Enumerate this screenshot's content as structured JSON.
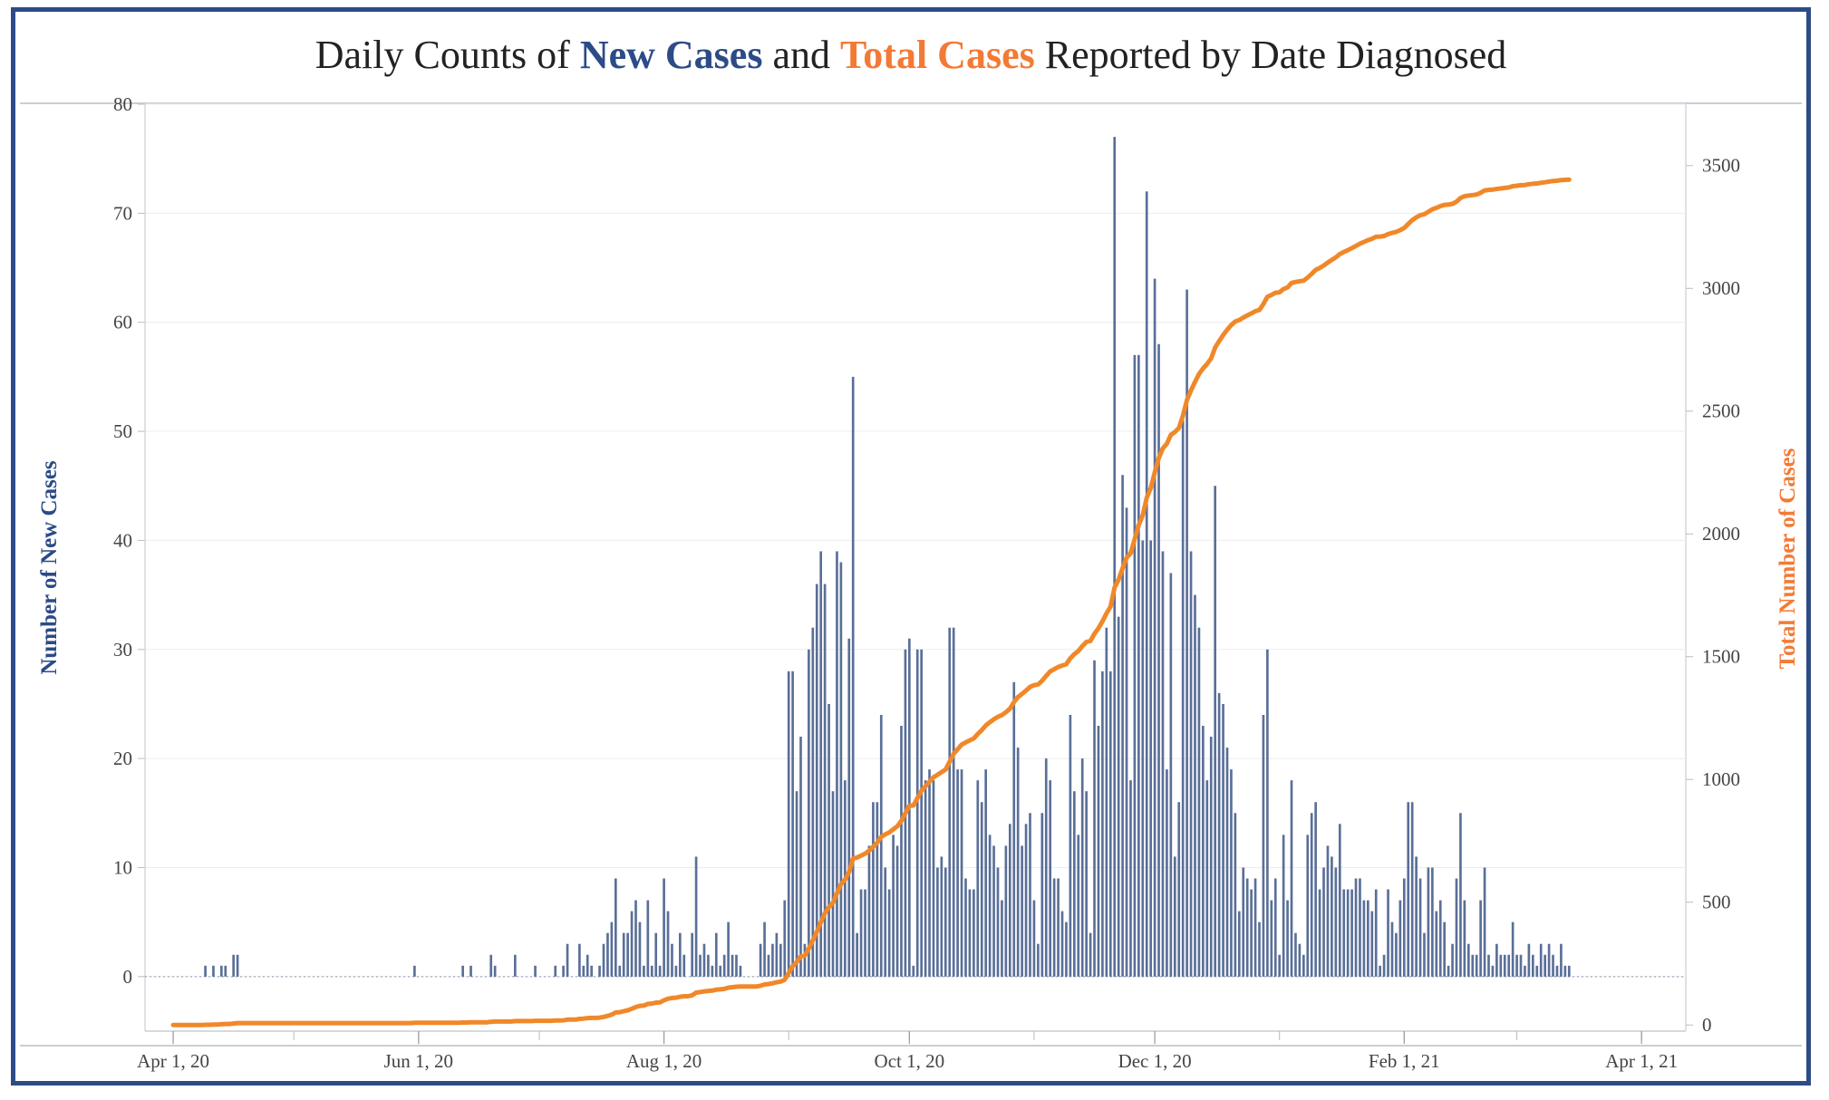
{
  "title": {
    "prefix": "Daily Counts of ",
    "new_cases": "New Cases",
    "mid": " and ",
    "total_cases": "Total Cases",
    "suffix": " Reported by Date Diagnosed"
  },
  "colors": {
    "bars": "#5a6f98",
    "line": "#f0882a",
    "new_cases": "#2c4b87",
    "total_cases": "#f37a35",
    "frame": "#2c4b87"
  },
  "chart_data": {
    "type": "bar",
    "ylabel": "Number of New Cases",
    "y2label": "Total Number of Cases",
    "ylim": [
      -5,
      80
    ],
    "y2lim": [
      -25,
      3750
    ],
    "yticks": [
      0,
      10,
      20,
      30,
      40,
      50,
      60,
      70,
      80
    ],
    "y2ticks": [
      0,
      500,
      1000,
      1500,
      2000,
      2500,
      3000,
      3500
    ],
    "xlim": [
      "2020-03-25",
      "2021-04-12"
    ],
    "xticks": [
      {
        "date": "2020-04-01",
        "label": "Apr 1, 20"
      },
      {
        "date": "2020-06-01",
        "label": "Jun 1, 20"
      },
      {
        "date": "2020-08-01",
        "label": "Aug 1, 20"
      },
      {
        "date": "2020-10-01",
        "label": "Oct 1, 20"
      },
      {
        "date": "2020-12-01",
        "label": "Dec 1, 20"
      },
      {
        "date": "2021-02-01",
        "label": "Feb 1, 21"
      },
      {
        "date": "2021-04-01",
        "label": "Apr 1, 21"
      }
    ],
    "grid": true,
    "start_date": "2020-04-01",
    "new_cases": [
      0,
      0,
      0,
      0,
      0,
      0,
      0,
      0,
      1,
      0,
      1,
      0,
      1,
      1,
      0,
      2,
      2,
      0,
      0,
      0,
      0,
      0,
      0,
      0,
      0,
      0,
      0,
      0,
      0,
      0,
      0,
      0,
      0,
      0,
      0,
      0,
      0,
      0,
      0,
      0,
      0,
      0,
      0,
      0,
      0,
      0,
      0,
      0,
      0,
      0,
      0,
      0,
      0,
      0,
      0,
      0,
      0,
      0,
      0,
      0,
      1,
      0,
      0,
      0,
      0,
      0,
      0,
      0,
      0,
      0,
      0,
      0,
      1,
      0,
      1,
      0,
      0,
      0,
      0,
      2,
      1,
      0,
      0,
      0,
      0,
      2,
      0,
      0,
      0,
      0,
      1,
      0,
      0,
      0,
      0,
      1,
      0,
      1,
      3,
      0,
      0,
      3,
      1,
      2,
      1,
      0,
      1,
      3,
      4,
      5,
      9,
      1,
      4,
      4,
      6,
      7,
      5,
      1,
      7,
      1,
      4,
      1,
      9,
      6,
      3,
      1,
      4,
      2,
      0,
      4,
      11,
      2,
      3,
      2,
      1,
      4,
      1,
      2,
      5,
      2,
      2,
      1,
      0,
      0,
      0,
      0,
      3,
      5,
      2,
      3,
      4,
      3,
      7,
      28,
      28,
      17,
      22,
      3,
      30,
      32,
      36,
      39,
      36,
      25,
      17,
      39,
      38,
      18,
      31,
      55,
      4,
      8,
      8,
      12,
      16,
      16,
      24,
      10,
      8,
      13,
      12,
      23,
      30,
      31,
      1,
      30,
      30,
      18,
      19,
      18,
      10,
      11,
      10,
      32,
      32,
      19,
      19,
      9,
      8,
      8,
      18,
      16,
      19,
      13,
      12,
      10,
      7,
      12,
      14,
      27,
      21,
      12,
      14,
      15,
      7,
      3,
      15,
      20,
      18,
      9,
      9,
      6,
      5,
      24,
      17,
      13,
      20,
      17,
      4,
      29,
      23,
      28,
      32,
      28,
      77,
      33,
      46,
      43,
      18,
      57,
      57,
      40,
      72,
      40,
      64,
      58,
      39,
      19,
      37,
      11,
      16,
      51,
      63,
      39,
      35,
      32,
      23,
      18,
      22,
      45,
      26,
      25,
      21,
      19,
      15,
      6,
      10,
      9,
      8,
      9,
      5,
      24,
      30,
      7,
      9,
      2,
      13,
      7,
      18,
      4,
      3,
      2,
      13,
      15,
      16,
      8,
      10,
      12,
      11,
      10,
      14,
      8,
      8,
      8,
      9,
      9,
      7,
      7,
      6,
      8,
      1,
      2,
      8,
      5,
      4,
      7,
      9,
      16,
      16,
      11,
      9,
      4,
      10,
      10,
      6,
      7,
      5,
      1,
      3,
      9,
      15,
      7,
      3,
      2,
      2,
      7,
      10,
      2,
      1,
      3,
      2,
      2,
      2,
      5,
      2,
      2,
      1,
      3,
      2,
      1,
      3,
      2,
      3,
      2,
      1,
      3,
      1,
      1
    ]
  }
}
